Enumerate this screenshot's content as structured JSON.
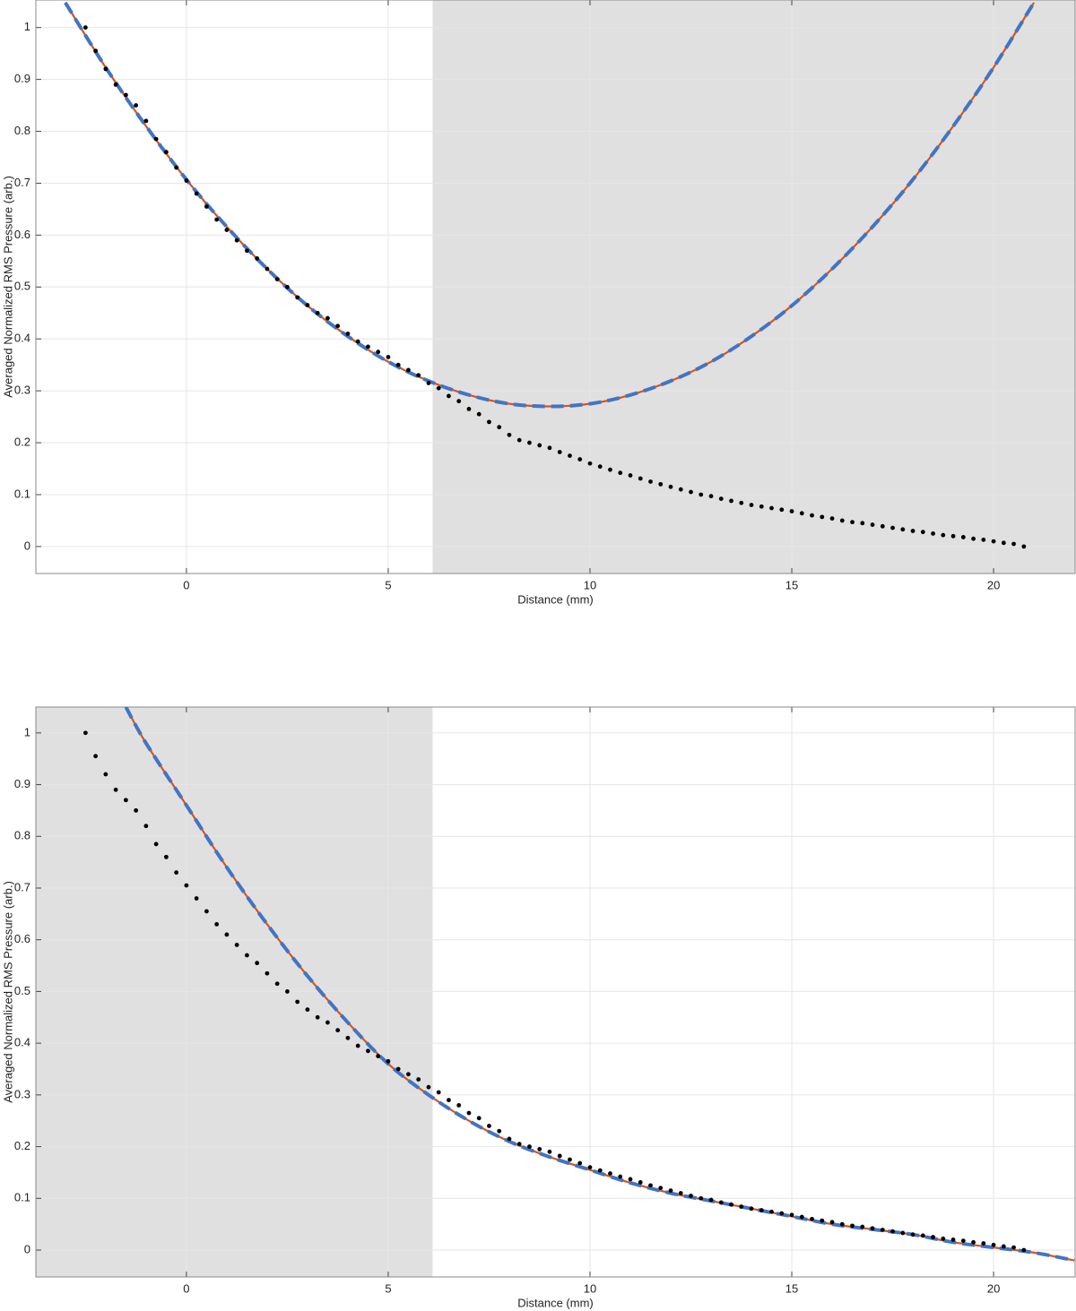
{
  "chart_data": [
    {
      "type": "scatter",
      "xlabel": "Distance (mm)",
      "ylabel": "Averaged Normalized RMS Pressure (arb.)",
      "xlim": [
        -3.73,
        22.02
      ],
      "ylim": [
        -0.052,
        1.053
      ],
      "xticks": [
        0,
        5,
        10,
        15,
        20
      ],
      "yticks": [
        0,
        0.1,
        0.2,
        0.3,
        0.4,
        0.5,
        0.6,
        0.7,
        0.8,
        0.9,
        1
      ],
      "grid": true,
      "shade": [
        6.1,
        22.02
      ],
      "shade_color": "#e0e0e0",
      "points": {
        "color": "#000000",
        "x": [
          -2.5,
          -2.25,
          -2,
          -1.75,
          -1.5,
          -1.25,
          -1,
          -0.75,
          -0.5,
          -0.25,
          0,
          0.25,
          0.5,
          0.75,
          1,
          1.25,
          1.5,
          1.75,
          2,
          2.25,
          2.5,
          2.75,
          3,
          3.25,
          3.5,
          3.75,
          4,
          4.25,
          4.5,
          4.75,
          5,
          5.25,
          5.5,
          5.75,
          6,
          6.25,
          6.5,
          6.75,
          7,
          7.25,
          7.5,
          7.75,
          8,
          8.25,
          8.5,
          8.75,
          9,
          9.25,
          9.5,
          9.75,
          10,
          10.25,
          10.5,
          10.75,
          11,
          11.25,
          11.5,
          11.75,
          12,
          12.25,
          12.5,
          12.75,
          13,
          13.25,
          13.5,
          13.75,
          14,
          14.25,
          14.5,
          14.75,
          15,
          15.25,
          15.5,
          15.75,
          16,
          16.25,
          16.5,
          16.75,
          17,
          17.25,
          17.5,
          17.75,
          18,
          18.25,
          18.5,
          18.75,
          19,
          19.25,
          19.5,
          19.75,
          20,
          20.25,
          20.5,
          20.75
        ],
        "values": [
          1.0,
          0.955,
          0.92,
          0.89,
          0.87,
          0.85,
          0.82,
          0.785,
          0.76,
          0.73,
          0.705,
          0.68,
          0.655,
          0.63,
          0.61,
          0.59,
          0.57,
          0.555,
          0.535,
          0.515,
          0.5,
          0.48,
          0.465,
          0.45,
          0.44,
          0.425,
          0.41,
          0.395,
          0.385,
          0.375,
          0.365,
          0.35,
          0.34,
          0.33,
          0.315,
          0.305,
          0.29,
          0.28,
          0.265,
          0.255,
          0.24,
          0.23,
          0.215,
          0.205,
          0.2,
          0.195,
          0.19,
          0.182,
          0.175,
          0.168,
          0.16,
          0.154,
          0.148,
          0.142,
          0.137,
          0.131,
          0.125,
          0.12,
          0.115,
          0.11,
          0.105,
          0.1,
          0.097,
          0.092,
          0.088,
          0.084,
          0.08,
          0.077,
          0.074,
          0.071,
          0.068,
          0.064,
          0.06,
          0.057,
          0.054,
          0.05,
          0.047,
          0.045,
          0.042,
          0.039,
          0.036,
          0.033,
          0.03,
          0.028,
          0.025,
          0.022,
          0.02,
          0.018,
          0.015,
          0.013,
          0.01,
          0.007,
          0.005,
          0
        ]
      },
      "fit_x": [
        -3,
        -2,
        -1,
        0,
        1,
        2,
        3,
        4,
        5,
        6,
        7,
        8,
        9,
        10,
        11,
        12,
        13,
        14,
        15,
        16,
        17,
        18,
        19,
        20,
        21
      ],
      "series": [
        {
          "color": "#d95319",
          "dashed": false,
          "values": [
            1.048,
            0.923,
            0.81,
            0.707,
            0.616,
            0.535,
            0.464,
            0.405,
            0.356,
            0.319,
            0.292,
            0.275,
            0.27,
            0.275,
            0.292,
            0.319,
            0.356,
            0.405,
            0.464,
            0.535,
            0.616,
            0.707,
            0.81,
            0.923,
            1.048
          ]
        },
        {
          "color": "#4274c2",
          "dashed": true,
          "values": [
            1.048,
            0.923,
            0.81,
            0.707,
            0.616,
            0.535,
            0.464,
            0.405,
            0.356,
            0.319,
            0.292,
            0.275,
            0.27,
            0.275,
            0.292,
            0.319,
            0.356,
            0.405,
            0.464,
            0.535,
            0.616,
            0.707,
            0.81,
            0.923,
            1.048
          ]
        }
      ]
    },
    {
      "type": "scatter",
      "xlabel": "Distance (mm)",
      "ylabel": "Averaged Normalized RMS Pressure (arb.)",
      "xlim": [
        -3.73,
        22.02
      ],
      "ylim": [
        -0.052,
        1.05
      ],
      "xticks": [
        0,
        5,
        10,
        15,
        20
      ],
      "yticks": [
        0,
        0.1,
        0.2,
        0.3,
        0.4,
        0.5,
        0.6,
        0.7,
        0.8,
        0.9,
        1
      ],
      "grid": true,
      "shade": [
        -3.73,
        6.1
      ],
      "shade_color": "#e0e0e0",
      "points": {
        "color": "#000000",
        "x": [
          -2.5,
          -2.25,
          -2,
          -1.75,
          -1.5,
          -1.25,
          -1,
          -0.75,
          -0.5,
          -0.25,
          0,
          0.25,
          0.5,
          0.75,
          1,
          1.25,
          1.5,
          1.75,
          2,
          2.25,
          2.5,
          2.75,
          3,
          3.25,
          3.5,
          3.75,
          4,
          4.25,
          4.5,
          4.75,
          5,
          5.25,
          5.5,
          5.75,
          6,
          6.25,
          6.5,
          6.75,
          7,
          7.25,
          7.5,
          7.75,
          8,
          8.25,
          8.5,
          8.75,
          9,
          9.25,
          9.5,
          9.75,
          10,
          10.25,
          10.5,
          10.75,
          11,
          11.25,
          11.5,
          11.75,
          12,
          12.25,
          12.5,
          12.75,
          13,
          13.25,
          13.5,
          13.75,
          14,
          14.25,
          14.5,
          14.75,
          15,
          15.25,
          15.5,
          15.75,
          16,
          16.25,
          16.5,
          16.75,
          17,
          17.25,
          17.5,
          17.75,
          18,
          18.25,
          18.5,
          18.75,
          19,
          19.25,
          19.5,
          19.75,
          20,
          20.25,
          20.5,
          20.75
        ],
        "values": [
          1.0,
          0.955,
          0.92,
          0.89,
          0.87,
          0.85,
          0.82,
          0.785,
          0.76,
          0.73,
          0.705,
          0.68,
          0.655,
          0.63,
          0.61,
          0.59,
          0.57,
          0.555,
          0.535,
          0.515,
          0.5,
          0.48,
          0.465,
          0.45,
          0.44,
          0.425,
          0.41,
          0.395,
          0.385,
          0.375,
          0.365,
          0.35,
          0.34,
          0.33,
          0.315,
          0.305,
          0.29,
          0.28,
          0.265,
          0.255,
          0.24,
          0.23,
          0.215,
          0.205,
          0.2,
          0.195,
          0.19,
          0.182,
          0.175,
          0.168,
          0.16,
          0.154,
          0.148,
          0.142,
          0.137,
          0.131,
          0.125,
          0.12,
          0.115,
          0.11,
          0.105,
          0.1,
          0.097,
          0.092,
          0.088,
          0.084,
          0.08,
          0.077,
          0.074,
          0.071,
          0.068,
          0.064,
          0.06,
          0.057,
          0.054,
          0.05,
          0.047,
          0.045,
          0.042,
          0.039,
          0.036,
          0.033,
          0.03,
          0.028,
          0.025,
          0.022,
          0.02,
          0.018,
          0.015,
          0.013,
          0.01,
          0.007,
          0.005,
          0
        ]
      },
      "fit_x": [
        -1.5,
        -1,
        0,
        1,
        2,
        3,
        4,
        5,
        6,
        7,
        8,
        9,
        10,
        11,
        12,
        13,
        14,
        15,
        16,
        17,
        18,
        19,
        20,
        21,
        22
      ],
      "series": [
        {
          "color": "#d95319",
          "dashed": false,
          "values": [
            1.05,
            0.98,
            0.86,
            0.74,
            0.63,
            0.53,
            0.44,
            0.36,
            0.3,
            0.25,
            0.21,
            0.18,
            0.155,
            0.13,
            0.11,
            0.095,
            0.08,
            0.065,
            0.05,
            0.04,
            0.03,
            0.015,
            0.005,
            -0.005,
            -0.02
          ]
        },
        {
          "color": "#4274c2",
          "dashed": true,
          "values": [
            1.05,
            0.98,
            0.86,
            0.74,
            0.63,
            0.53,
            0.44,
            0.36,
            0.3,
            0.25,
            0.21,
            0.18,
            0.155,
            0.13,
            0.11,
            0.095,
            0.08,
            0.065,
            0.05,
            0.04,
            0.03,
            0.015,
            0.005,
            -0.005,
            -0.02
          ]
        }
      ]
    }
  ]
}
